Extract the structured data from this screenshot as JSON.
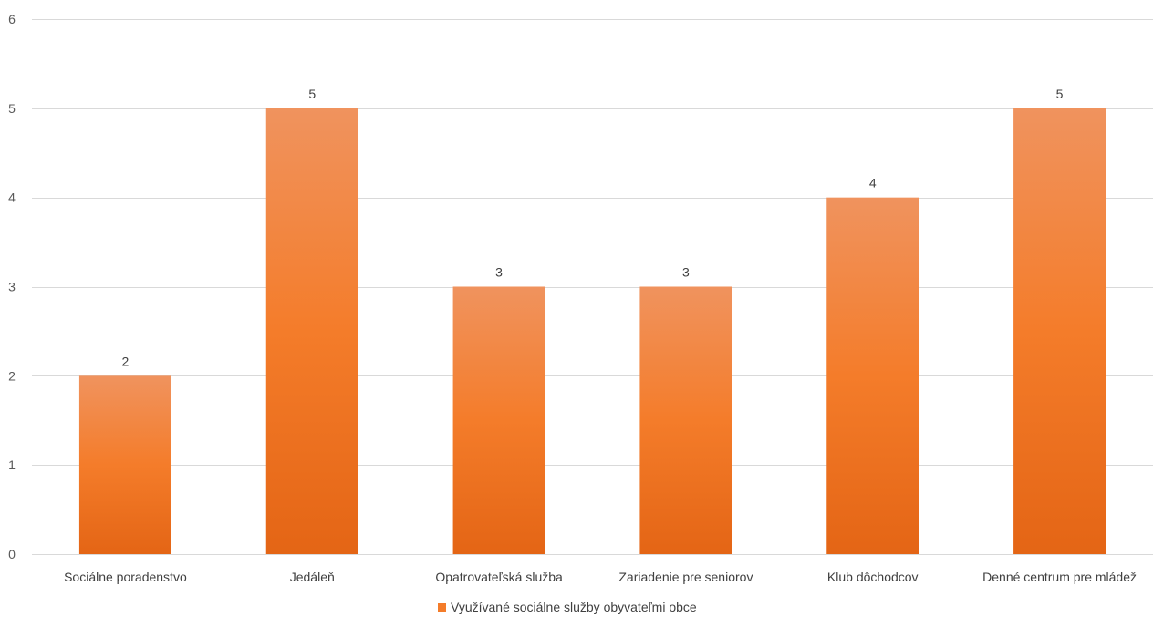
{
  "chart_data": {
    "type": "bar",
    "categories": [
      "Sociálne poradenstvo",
      "Jedáleň",
      "Opatrovateľská služba",
      "Zariadenie pre seniorov",
      "Klub dôchodcov",
      "Denné centrum pre mládež"
    ],
    "series": [
      {
        "name": "Využívané sociálne služby obyvateľmi obce",
        "values": [
          2,
          5,
          3,
          3,
          4,
          5
        ]
      }
    ],
    "yticks": [
      "0",
      "1",
      "2",
      "3",
      "4",
      "5",
      "6"
    ],
    "ylim": [
      0,
      6
    ],
    "grid": true,
    "data_labels": true,
    "legend_position": "bottom",
    "colors": {
      "bar_top": "#F0935E",
      "bar_mid": "#F47C2A",
      "bar_bottom": "#E46515",
      "grid": "#D9D9D9"
    }
  }
}
